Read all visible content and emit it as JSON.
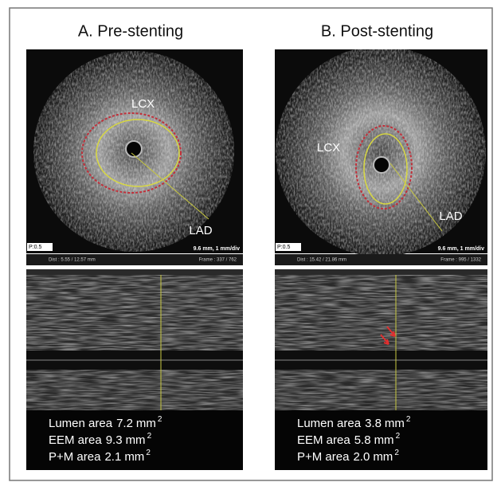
{
  "panels": [
    {
      "title": "A. Pre-stenting",
      "labels": [
        "LCX",
        "LAD"
      ],
      "p_label": "P:0.5",
      "scale": "9.6 mm, 1 mm/div",
      "dist": "Dist : 5.55 / 12.57 mm",
      "frame": "Frame : 337 / 762",
      "measurements": [
        {
          "name": "Lumen area",
          "value": "7.2",
          "unit": "mm",
          "exponent": "2"
        },
        {
          "name": "EEM area",
          "value": "9.3",
          "unit": "mm",
          "exponent": "2"
        },
        {
          "name": "P+M area",
          "value": "2.1",
          "unit": "mm",
          "exponent": "2"
        }
      ]
    },
    {
      "title": "B. Post-stenting",
      "labels": [
        "LCX",
        "LAD"
      ],
      "p_label": "P:0.5",
      "scale": "9.6 mm, 1 mm/div",
      "dist": "Dist : 15.42 / 21.86 mm",
      "frame": "Frame : 995 / 1332",
      "measurements": [
        {
          "name": "Lumen area",
          "value": "3.8",
          "unit": "mm",
          "exponent": "2"
        },
        {
          "name": "EEM area",
          "value": "5.8",
          "unit": "mm",
          "exponent": "2"
        },
        {
          "name": "P+M area",
          "value": "2.0",
          "unit": "mm",
          "exponent": "2"
        }
      ]
    }
  ]
}
